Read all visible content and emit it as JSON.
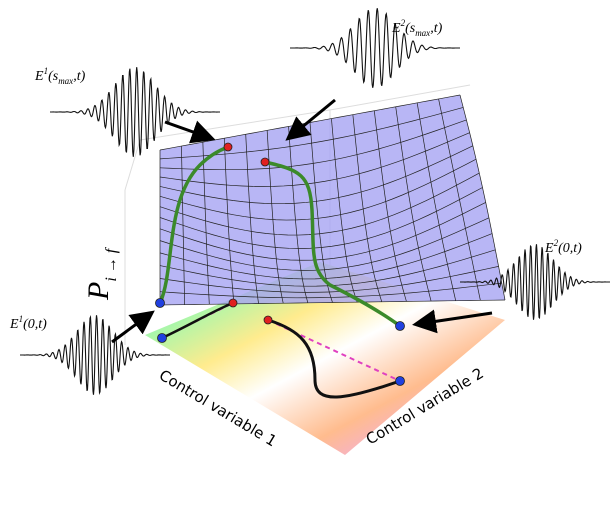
{
  "axes": {
    "z_label": {
      "base": "P",
      "sub": "i → f"
    },
    "x_label": "Control variable 1",
    "y_label": "Control variable 2"
  },
  "pulses": [
    {
      "base": "E",
      "sup": "1",
      "open": "(s",
      "sub": "max",
      "close": ",t)"
    },
    {
      "base": "E",
      "sup": "2",
      "open": "(s",
      "sub": "max",
      "close": ",t)"
    },
    {
      "base": "E",
      "sup": "1",
      "open": "(0,t)"
    },
    {
      "base": "E",
      "sup": "2",
      "open": "(0,t)"
    }
  ]
}
